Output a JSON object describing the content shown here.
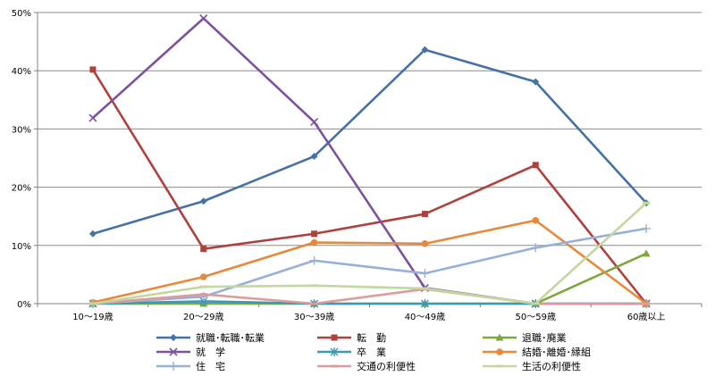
{
  "chart_data": {
    "type": "line",
    "categories": [
      "10～19歳",
      "20～29歳",
      "30～39歳",
      "40～49歳",
      "50～59歳",
      "60歳以上"
    ],
    "ylim": [
      0,
      50
    ],
    "y_ticks": [
      "0%",
      "10%",
      "20%",
      "30%",
      "40%",
      "50%"
    ],
    "grid": true,
    "legend_position": "bottom",
    "series": [
      {
        "name": "就職･転職･転業",
        "color": "#4472A8",
        "marker": "diamond",
        "values": [
          12.0,
          17.6,
          25.3,
          43.6,
          38.1,
          17.3
        ]
      },
      {
        "name": "転　勤",
        "color": "#B0403C",
        "marker": "square",
        "values": [
          40.2,
          9.4,
          12.0,
          15.4,
          23.8,
          0.0
        ]
      },
      {
        "name": "退職･廃業",
        "color": "#7DA840",
        "marker": "triangle",
        "values": [
          0.0,
          0.0,
          0.0,
          0.0,
          0.0,
          8.6
        ]
      },
      {
        "name": "就　学",
        "color": "#7A539E",
        "marker": "x",
        "values": [
          31.9,
          49.0,
          31.2,
          2.7,
          0.0,
          0.0
        ]
      },
      {
        "name": "卒　業",
        "color": "#3C98B4",
        "marker": "star",
        "values": [
          0.0,
          0.4,
          0.0,
          0.0,
          0.0,
          0.0
        ]
      },
      {
        "name": "結婚･離婚･縁組",
        "color": "#E8883A",
        "marker": "circle",
        "values": [
          0.2,
          4.6,
          10.5,
          10.3,
          14.3,
          0.0
        ]
      },
      {
        "name": "住　宅",
        "color": "#98B0D8",
        "marker": "plus",
        "values": [
          0.0,
          1.2,
          7.4,
          5.2,
          9.6,
          12.9
        ]
      },
      {
        "name": "交通の利便性",
        "color": "#DC9C9C",
        "marker": "dash",
        "values": [
          0.0,
          1.6,
          0.0,
          2.5,
          0.0,
          0.0
        ]
      },
      {
        "name": "生活の利便性",
        "color": "#C2D89C",
        "marker": "dash",
        "values": [
          0.0,
          2.9,
          3.1,
          2.6,
          0.0,
          17.3
        ]
      }
    ]
  }
}
